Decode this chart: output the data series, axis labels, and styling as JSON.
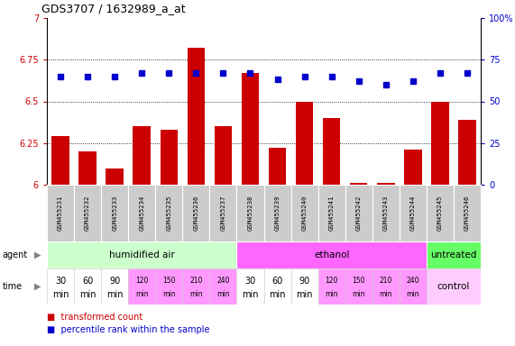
{
  "title": "GDS3707 / 1632989_a_at",
  "samples": [
    "GSM455231",
    "GSM455232",
    "GSM455233",
    "GSM455234",
    "GSM455235",
    "GSM455236",
    "GSM455237",
    "GSM455238",
    "GSM455239",
    "GSM455240",
    "GSM455241",
    "GSM455242",
    "GSM455243",
    "GSM455244",
    "GSM455245",
    "GSM455246"
  ],
  "bar_values": [
    6.29,
    6.2,
    6.1,
    6.35,
    6.33,
    6.82,
    6.35,
    6.67,
    6.22,
    6.5,
    6.4,
    6.01,
    6.01,
    6.21,
    6.5,
    6.39
  ],
  "dot_values": [
    65,
    65,
    65,
    67,
    67,
    67,
    67,
    67,
    63,
    65,
    65,
    62,
    60,
    62,
    67,
    67
  ],
  "ylim": [
    6.0,
    7.0
  ],
  "yticks": [
    6.0,
    6.25,
    6.5,
    6.75,
    7.0
  ],
  "ytick_labels": [
    "6",
    "6.25",
    "6.5",
    "6.75",
    "7"
  ],
  "y2ticks": [
    0,
    25,
    50,
    75,
    100
  ],
  "y2tick_labels": [
    "0",
    "25",
    "50",
    "75",
    "100%"
  ],
  "bar_color": "#cc0000",
  "dot_color": "#0000cc",
  "agent_groups": [
    {
      "label": "humidified air",
      "start": 0,
      "end": 7,
      "color": "#ccffcc"
    },
    {
      "label": "ethanol",
      "start": 7,
      "end": 14,
      "color": "#ff66ff"
    },
    {
      "label": "untreated",
      "start": 14,
      "end": 16,
      "color": "#66ff66"
    }
  ],
  "time_labels_14": [
    "30\nmin",
    "60\nmin",
    "90\nmin",
    "120\nmin",
    "150\nmin",
    "210\nmin",
    "240\nmin",
    "30\nmin",
    "60\nmin",
    "90\nmin",
    "120\nmin",
    "150\nmin",
    "210\nmin",
    "240\nmin"
  ],
  "time_colors_14": [
    "#ffffff",
    "#ffffff",
    "#ffffff",
    "#ff99ff",
    "#ff99ff",
    "#ff99ff",
    "#ff99ff",
    "#ffffff",
    "#ffffff",
    "#ffffff",
    "#ff99ff",
    "#ff99ff",
    "#ff99ff",
    "#ff99ff"
  ],
  "time_control_label": "control",
  "time_control_color": "#ffccff",
  "sample_bg_color": "#cccccc",
  "fig_width": 5.71,
  "fig_height": 3.84,
  "dpi": 100
}
